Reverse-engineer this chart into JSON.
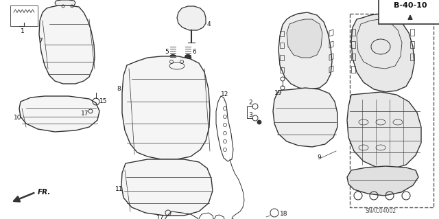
{
  "bg_color": "#ffffff",
  "line_color": "#333333",
  "label_color": "#111111",
  "part_ref": "B-40-10",
  "diagram_code": "SNAC04002",
  "figsize": [
    6.4,
    3.19
  ],
  "dpi": 100
}
